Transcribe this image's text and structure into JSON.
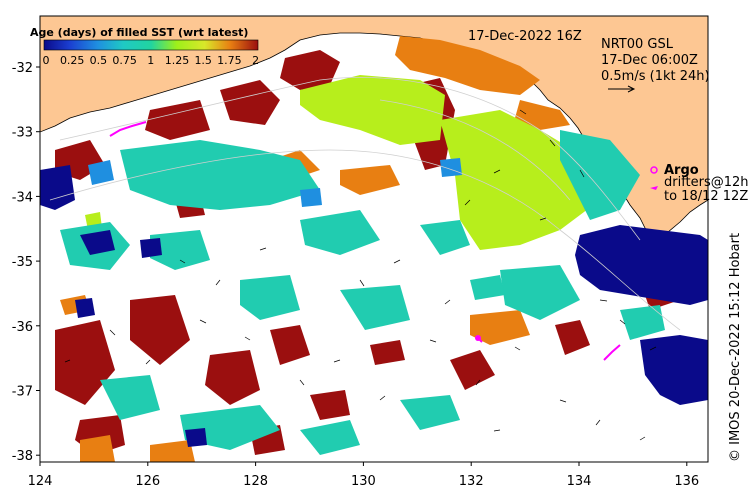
{
  "header": {
    "date_label": "17-Dec-2022 16Z"
  },
  "currents": {
    "line1": "NRT00 GSL",
    "line2": "17-Dec 06:00Z",
    "scale_label": "0.5m/s (1kt 24h)"
  },
  "legend": {
    "argo_label": "Argo",
    "drifters_line1": "drifters@12h",
    "drifters_line2": "to 18/12 12Z"
  },
  "colorbar": {
    "title": "Age (days) of filled SST (wrt latest)",
    "ticks": [
      "0",
      "0.25",
      "0.5",
      "0.75",
      "1",
      "1.25",
      "1.5",
      "1.75",
      "2"
    ],
    "colors": [
      "#0a0a8a",
      "#1b3fd1",
      "#1f8fe0",
      "#1fc9c4",
      "#21d4a0",
      "#9ef01a",
      "#d8e82a",
      "#e87f12",
      "#9b0f0f"
    ]
  },
  "axes": {
    "x_ticks": [
      "124",
      "126",
      "128",
      "130",
      "132",
      "134",
      "136"
    ],
    "y_ticks": [
      "-32",
      "-33",
      "-34",
      "-35",
      "-36",
      "-37",
      "-38"
    ]
  },
  "credit": "© IMOS 20-Dec-2022 15:12 Hobart",
  "colors": {
    "land": "#fdc793",
    "frame": "#000000",
    "argo": "#ff00ff"
  }
}
